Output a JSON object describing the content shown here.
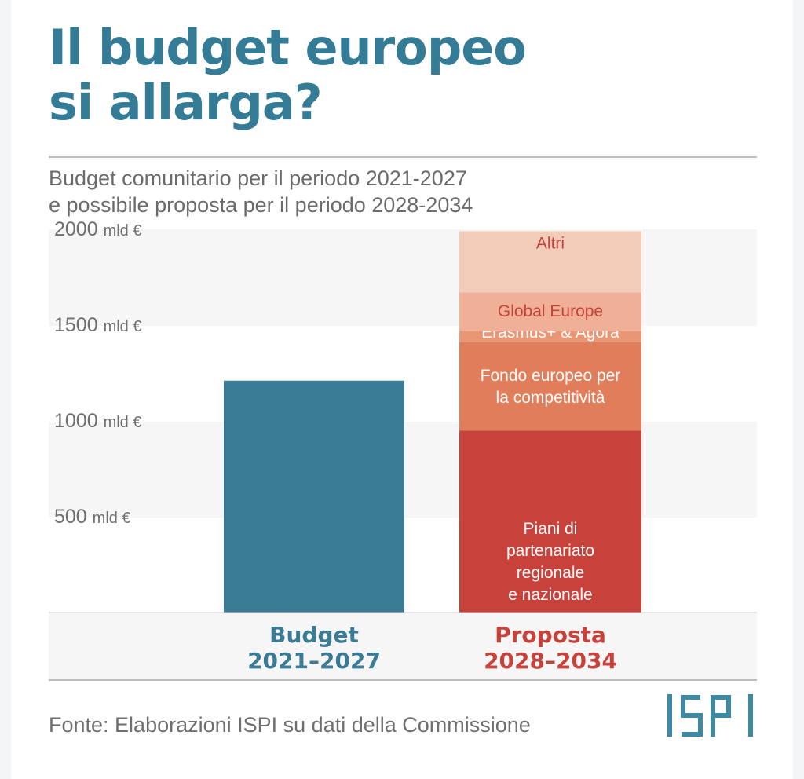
{
  "title": {
    "line1": "Il budget europeo",
    "line2": "si allarga?"
  },
  "subtitle": {
    "line1": "Budget comunitario per il periodo 2021-2027",
    "line2": "e possibile proposta per il periodo 2028-2034"
  },
  "source": "Fonte: Elaborazioni ISPI su dati della Commissione",
  "logo": "ISPI",
  "colors": {
    "title": "#347b95",
    "budget": "#3a7b95",
    "proposta_label": "#c8423c",
    "piani": "#c8423c",
    "fondo": "#e07d5b",
    "erasmus": "#e99676",
    "global": "#efb097",
    "altri": "#f3ccb9"
  },
  "chart_data": {
    "type": "bar",
    "stacked": true,
    "categories": [
      {
        "line1": "Budget",
        "line2": "2021–2027"
      },
      {
        "line1": "Proposta",
        "line2": "2028–2034"
      }
    ],
    "y_ticks": [
      {
        "value": 500,
        "num": "500",
        "unit": "mld €"
      },
      {
        "value": 1000,
        "num": "1000",
        "unit": "mld €"
      },
      {
        "value": 1500,
        "num": "1500",
        "unit": "mld €"
      },
      {
        "value": 2000,
        "num": "2000",
        "unit": "mld €"
      }
    ],
    "ylim": [
      0,
      2000
    ],
    "budget_total": 1210,
    "proposta_segments": [
      {
        "name": "Piani di partenariato regionale e nazionale",
        "lines": [
          "Piani di",
          "partenariato",
          "regionale",
          "e nazionale"
        ],
        "value": 950,
        "color": "#c8423c",
        "label_tone": "light"
      },
      {
        "name": "Fondo europeo per la competitività",
        "lines": [
          "Fondo europeo per",
          "la competitività"
        ],
        "value": 460,
        "color": "#e07d5b",
        "label_tone": "light"
      },
      {
        "name": "Erasmus+ & Agora",
        "lines": [
          "Erasmus+ & Agora"
        ],
        "value": 60,
        "color": "#e99676",
        "label_tone": "light"
      },
      {
        "name": "Global Europe",
        "lines": [
          "Global Europe"
        ],
        "value": 200,
        "color": "#efb097",
        "label_tone": "dark"
      },
      {
        "name": "Altri",
        "lines": [
          "Altri"
        ],
        "value": 320,
        "color": "#f3ccb9",
        "label_tone": "dark"
      }
    ],
    "grid": "alternating bands",
    "legend": "none"
  }
}
